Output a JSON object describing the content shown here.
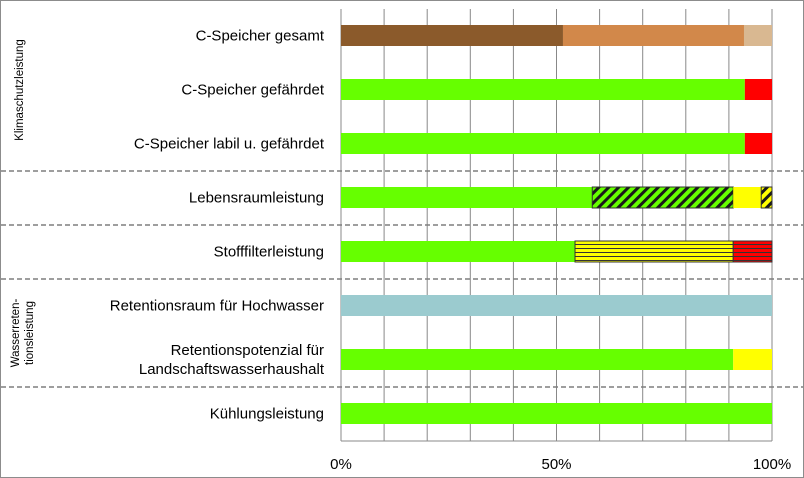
{
  "chart_data": {
    "type": "bar",
    "orientation": "horizontal",
    "stacked": true,
    "title": "",
    "xlabel": "",
    "ylabel": "",
    "xlim": [
      0,
      100
    ],
    "x_ticks": [
      "0%",
      "50%",
      "100%"
    ],
    "grid": "vertical gridlines every 10%",
    "legend": "none",
    "groups": [
      {
        "lines": [
          "Klimaschutzleistung"
        ],
        "rows": [
          0,
          1,
          2
        ]
      },
      {
        "lines": [
          "Wasserreten-",
          "tionsleistung"
        ],
        "rows": [
          5,
          6
        ]
      }
    ],
    "separators_after_rows": [
      2,
      3,
      4,
      6
    ],
    "categories": [
      {
        "lines": [
          "C-Speicher gesamt"
        ],
        "segments": [
          {
            "value": 51.5,
            "color": "#8B5A2B"
          },
          {
            "value": 42,
            "color": "#D2884A"
          },
          {
            "value": 6.5,
            "color": "#D9B891"
          }
        ]
      },
      {
        "lines": [
          "C-Speicher gefährdet"
        ],
        "segments": [
          {
            "value": 93.7,
            "color": "#66FF00"
          },
          {
            "value": 6.3,
            "color": "#FF0000"
          }
        ]
      },
      {
        "lines": [
          "C-Speicher labil u. gefährdet"
        ],
        "segments": [
          {
            "value": 93.7,
            "color": "#66FF00"
          },
          {
            "value": 6.3,
            "color": "#FF0000"
          }
        ]
      },
      {
        "lines": [
          "Lebensraumleistung"
        ],
        "segments": [
          {
            "value": 58.3,
            "color": "#66FF00"
          },
          {
            "value": 32.7,
            "color": "#66FF00",
            "pattern": "diagonal-hatch"
          },
          {
            "value": 6.5,
            "color": "#FFFF00"
          },
          {
            "value": 2.5,
            "color": "#FFFF00",
            "pattern": "diagonal-hatch"
          }
        ]
      },
      {
        "lines": [
          "Stofffilterleistung"
        ],
        "segments": [
          {
            "value": 54.3,
            "color": "#66FF00"
          },
          {
            "value": 36.7,
            "color": "#FFFF00",
            "pattern": "horizontal-lines"
          },
          {
            "value": 9,
            "color": "#FF0000",
            "pattern": "horizontal-lines"
          }
        ]
      },
      {
        "lines": [
          "Retentionsraum für Hochwasser"
        ],
        "segments": [
          {
            "value": 100,
            "color": "#9BCBCF"
          }
        ]
      },
      {
        "lines": [
          "Retentionspotenzial für",
          "Landschaftswasserhaushalt"
        ],
        "segments": [
          {
            "value": 91,
            "color": "#66FF00"
          },
          {
            "value": 9,
            "color": "#FFFF00"
          }
        ]
      },
      {
        "lines": [
          "Kühlungsleistung"
        ],
        "segments": [
          {
            "value": 100,
            "color": "#66FF00"
          }
        ]
      }
    ]
  }
}
